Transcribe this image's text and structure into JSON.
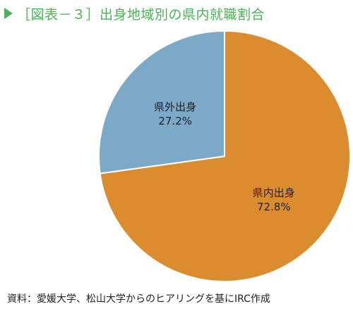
{
  "title": "［図表－３］出身地域別の県内就職割合",
  "source": "資料：愛媛大学、松山大学からのヒアリングを基にIRC作成",
  "colors": {
    "title": "#4cb257",
    "slice_kennai": "#db8c2f",
    "slice_kengai": "#7ba9c7"
  },
  "chart_data": {
    "type": "pie",
    "slices": [
      {
        "label": "県内出身",
        "value": 72.8,
        "value_label": "72.8%",
        "color": "#db8c2f"
      },
      {
        "label": "県外出身",
        "value": 27.2,
        "value_label": "27.2%",
        "color": "#7ba9c7"
      }
    ],
    "start_angle": "12 o'clock",
    "direction": "clockwise"
  }
}
